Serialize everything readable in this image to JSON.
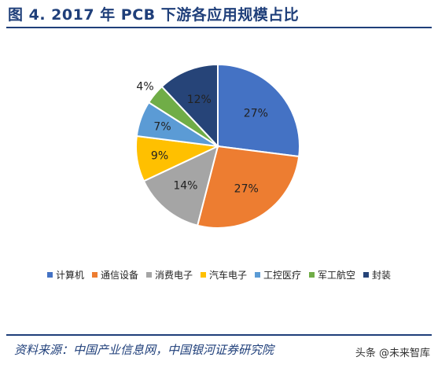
{
  "chart_data": {
    "type": "pie",
    "title": "图 4. 2017 年 PCB 下游各应用规模占比",
    "series": [
      {
        "name": "计算机",
        "value": 27,
        "label": "27%",
        "color": "#4472C4"
      },
      {
        "name": "通信设备",
        "value": 27,
        "label": "27%",
        "color": "#ED7D31"
      },
      {
        "name": "消费电子",
        "value": 14,
        "label": "14%",
        "color": "#A5A5A5"
      },
      {
        "name": "汽车电子",
        "value": 9,
        "label": "9%",
        "color": "#FFC000"
      },
      {
        "name": "工控医疗",
        "value": 7,
        "label": "7%",
        "color": "#5B9BD5"
      },
      {
        "name": "军工航空",
        "value": 4,
        "label": "4%",
        "color": "#70AD47"
      },
      {
        "name": "封装",
        "value": 12,
        "label": "12%",
        "color": "#264478"
      }
    ],
    "legend_position": "bottom"
  },
  "source_text": "资料来源：中国产业信息网，中国银河证券研究院",
  "watermark": "头条 @未来智库"
}
